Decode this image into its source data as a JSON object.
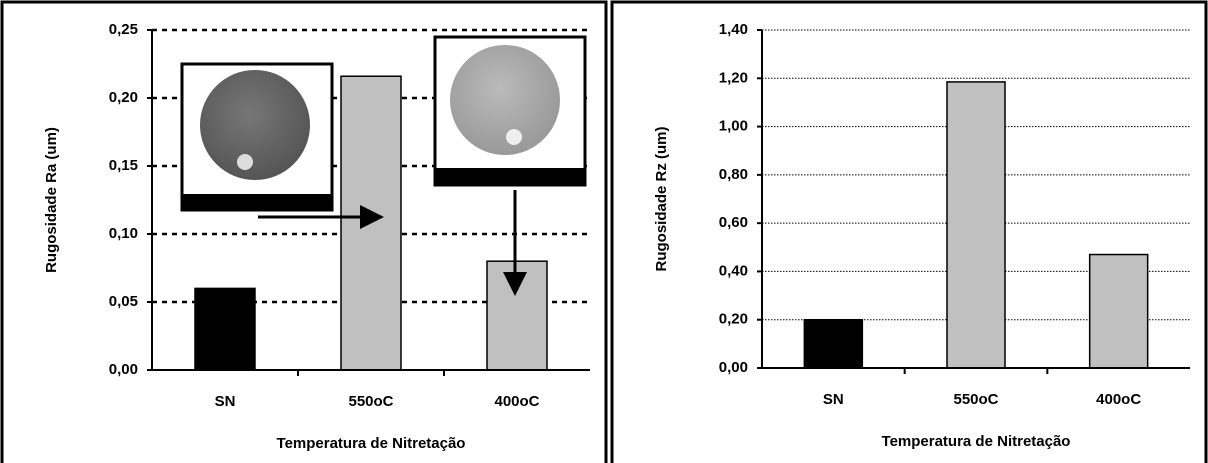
{
  "chart_data": [
    {
      "type": "bar",
      "y_label": "Rugosidade Ra (um)",
      "x_label": "Temperatura de Nitretação",
      "categories": [
        "SN",
        "550oC",
        "400oC"
      ],
      "values": [
        0.06,
        0.216,
        0.08
      ],
      "colors": [
        "#000000",
        "#c0c0c0",
        "#c0c0c0"
      ],
      "ylim": [
        0,
        0.25
      ],
      "yticks": [
        {
          "value": 0,
          "label": "0,00"
        },
        {
          "value": 0.05,
          "label": "0,05"
        },
        {
          "value": 0.1,
          "label": "0,10"
        },
        {
          "value": 0.15,
          "label": "0,15"
        },
        {
          "value": 0.2,
          "label": "0,20"
        },
        {
          "value": 0.25,
          "label": "0,25"
        }
      ],
      "grid": true
    },
    {
      "type": "bar",
      "y_label": "Rugosidade Rz (um)",
      "x_label": "Temperatura de Nitretação",
      "categories": [
        "SN",
        "550oC",
        "400oC"
      ],
      "values": [
        0.2,
        1.185,
        0.47
      ],
      "colors": [
        "#000000",
        "#c0c0c0",
        "#c0c0c0"
      ],
      "ylim": [
        0,
        1.4
      ],
      "yticks": [
        {
          "value": 0,
          "label": "0,00"
        },
        {
          "value": 0.2,
          "label": "0,20"
        },
        {
          "value": 0.4,
          "label": "0,40"
        },
        {
          "value": 0.6,
          "label": "0,60"
        },
        {
          "value": 0.8,
          "label": "0,80"
        },
        {
          "value": 1.0,
          "label": "1,00"
        },
        {
          "value": 1.2,
          "label": "1,20"
        },
        {
          "value": 1.4,
          "label": "1,40"
        }
      ],
      "grid": true
    }
  ]
}
